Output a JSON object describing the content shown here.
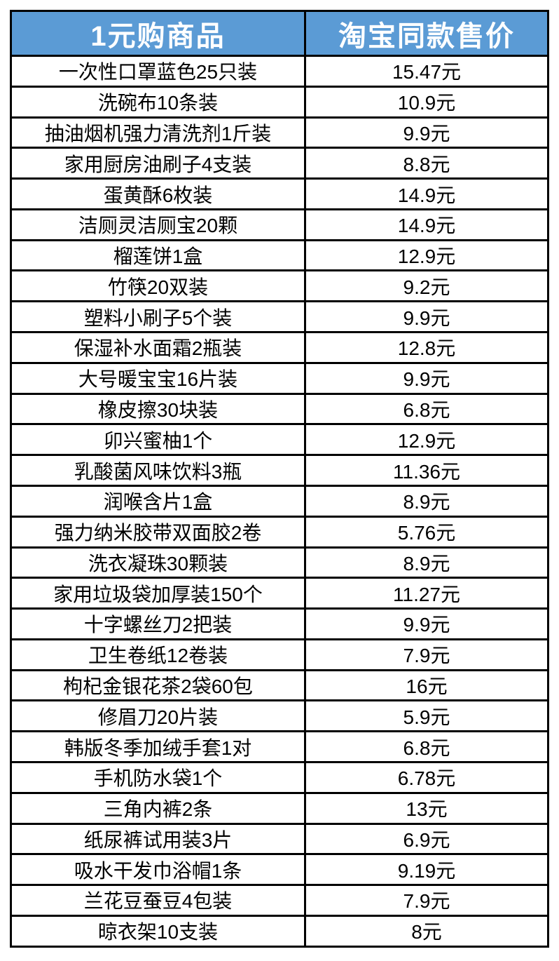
{
  "chart_data": {
    "type": "table",
    "header": {
      "product_col": "1元购商品",
      "price_col": "淘宝同款售价"
    },
    "rows": [
      {
        "product": "一次性口罩蓝色25只装",
        "price": "15.47元"
      },
      {
        "product": "洗碗布10条装",
        "price": "10.9元"
      },
      {
        "product": "抽油烟机强力清洗剂1斤装",
        "price": "9.9元"
      },
      {
        "product": "家用厨房油刷子4支装",
        "price": "8.8元"
      },
      {
        "product": "蛋黄酥6枚装",
        "price": "14.9元"
      },
      {
        "product": "洁厕灵洁厕宝20颗",
        "price": "14.9元"
      },
      {
        "product": "榴莲饼1盒",
        "price": "12.9元"
      },
      {
        "product": "竹筷20双装",
        "price": "9.2元"
      },
      {
        "product": "塑料小刷子5个装",
        "price": "9.9元"
      },
      {
        "product": "保湿补水面霜2瓶装",
        "price": "12.8元"
      },
      {
        "product": "大号暖宝宝16片装",
        "price": "9.9元"
      },
      {
        "product": "橡皮擦30块装",
        "price": "6.8元"
      },
      {
        "product": "卯兴蜜柚1个",
        "price": "12.9元"
      },
      {
        "product": "乳酸菌风味饮料3瓶",
        "price": "11.36元"
      },
      {
        "product": "润喉含片1盒",
        "price": "8.9元"
      },
      {
        "product": "强力纳米胶带双面胶2卷",
        "price": "5.76元"
      },
      {
        "product": "洗衣凝珠30颗装",
        "price": "8.9元"
      },
      {
        "product": "家用垃圾袋加厚装150个",
        "price": "11.27元"
      },
      {
        "product": "十字螺丝刀2把装",
        "price": "9.9元"
      },
      {
        "product": "卫生卷纸12卷装",
        "price": "7.9元"
      },
      {
        "product": "枸杞金银花茶2袋60包",
        "price": "16元"
      },
      {
        "product": "修眉刀20片装",
        "price": "5.9元"
      },
      {
        "product": "韩版冬季加绒手套1对",
        "price": "6.8元"
      },
      {
        "product": "手机防水袋1个",
        "price": "6.78元"
      },
      {
        "product": "三角内裤2条",
        "price": "13元"
      },
      {
        "product": "纸尿裤试用装3片",
        "price": "6.9元"
      },
      {
        "product": "吸水干发巾浴帽1条",
        "price": "9.19元"
      },
      {
        "product": "兰花豆蚕豆4包装",
        "price": "7.9元"
      },
      {
        "product": "晾衣架10支装",
        "price": "8元"
      }
    ]
  },
  "colors": {
    "header_bg": "#5B9BD5",
    "header_text": "#FFFFFF",
    "border": "#000000",
    "row_bg": "#FFFFFF",
    "body_text": "#000000"
  }
}
